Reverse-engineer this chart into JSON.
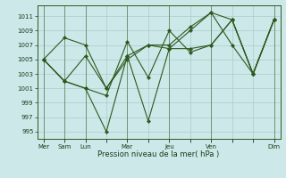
{
  "xlabel": "Pression niveau de la mer( hPa )",
  "bg_color": "#cce8e8",
  "grid_color": "#aacccc",
  "line_color": "#2d5a1e",
  "ylim": [
    994,
    1012.5
  ],
  "yticks": [
    995,
    997,
    999,
    1001,
    1003,
    1005,
    1007,
    1009,
    1011
  ],
  "xtick_labels": [
    "Mer",
    "Sam",
    "Lun",
    "",
    "Mar",
    "",
    "Jeu",
    "",
    "Ven",
    "",
    "",
    "Dim"
  ],
  "xtick_positions": [
    0,
    1,
    2,
    3,
    4,
    5,
    6,
    7,
    8,
    9,
    10,
    11
  ],
  "major_x": [
    0,
    1,
    2,
    4,
    6,
    8,
    11
  ],
  "series": [
    [
      1005.0,
      1008.0,
      1007.0,
      1001.0,
      1005.0,
      1007.0,
      1006.5,
      1009.0,
      1011.5,
      1010.5,
      1003.0,
      1010.5
    ],
    [
      1005.0,
      1002.0,
      1005.5,
      1001.0,
      1005.5,
      1007.0,
      1007.0,
      1009.5,
      1011.5,
      1007.0,
      1003.0,
      1010.5
    ],
    [
      1005.0,
      1002.0,
      1001.0,
      1000.0,
      1007.5,
      1002.5,
      1009.0,
      1006.0,
      1007.0,
      1010.5,
      1003.0,
      1010.5
    ],
    [
      1005.0,
      1002.0,
      1001.0,
      995.0,
      1005.5,
      996.5,
      1006.5,
      1006.5,
      1007.0,
      1010.5,
      1003.0,
      1010.5
    ]
  ]
}
